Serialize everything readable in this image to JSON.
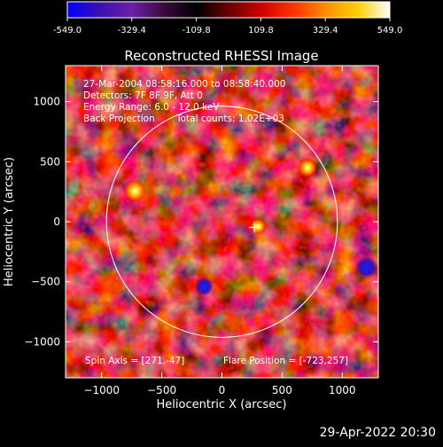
{
  "window": {
    "timestamp": "29-Apr-2022 20:30"
  },
  "colorbar": {
    "ticks": [
      "-549.0",
      "-329.4",
      "-109.8",
      "109.8",
      "329.4",
      "549.0"
    ],
    "range": [
      -549.0,
      549.0
    ],
    "colors": [
      "#0000ff",
      "#3a10b0",
      "#6b1fa8",
      "#3a0a3a",
      "#000000",
      "#6a0000",
      "#cc0000",
      "#ff3300",
      "#ff8c00",
      "#ffd000",
      "#ffffff"
    ]
  },
  "chart_data": {
    "type": "heatmap",
    "title": "Reconstructed RHESSI Image",
    "xlabel": "Heliocentric X (arcsec)",
    "ylabel": "Heliocentric Y (arcsec)",
    "xlim": [
      -1300,
      1300
    ],
    "ylim": [
      -1300,
      1300
    ],
    "xticks": [
      -1000,
      -500,
      0,
      500,
      1000
    ],
    "yticks": [
      -1000,
      -500,
      0,
      500,
      1000
    ],
    "xtick_labels": [
      "−1000",
      "−500",
      "0",
      "500",
      "1000"
    ],
    "ytick_labels": [
      "−1000",
      "−500",
      "0",
      "500",
      "1000"
    ],
    "value_range": [
      -549.0,
      549.0
    ],
    "solar_limb_radius": 960,
    "annotations": [
      "27-Mar-2004 08:58:16.000 to 08:58:40.000",
      "Detectors: 7F 8F 9F, Att 0",
      "Energy Range: 6.0 - 12.0 keV",
      "Back Projection",
      "Total counts: 1.02E+03"
    ],
    "spin_axis_label": "Spin Axis = [271,-47]",
    "flare_position_label": "Flare Position = [-723,257]",
    "spin_axis_marker": [
      271,
      -47
    ],
    "bright_sources": [
      {
        "x": -723,
        "y": 257,
        "value": 549
      },
      {
        "x": 710,
        "y": 450,
        "value": 420
      },
      {
        "x": 300,
        "y": -40,
        "value": 330
      }
    ],
    "dim_sources": [
      {
        "x": 1200,
        "y": -380,
        "value": -549
      },
      {
        "x": -150,
        "y": -540,
        "value": -420
      }
    ]
  }
}
